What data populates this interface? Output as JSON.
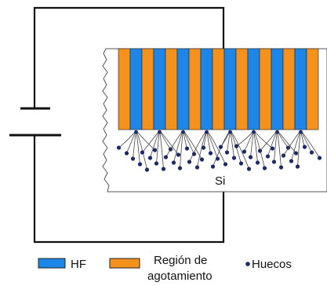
{
  "diagram": {
    "substrate_label": "Si",
    "colors": {
      "hf": "#1e86e6",
      "depletion": "#f5921e",
      "hole": "#1a2a6a",
      "wire": "#111111"
    },
    "stripe_count": 17
  },
  "legend": {
    "hf_label": "HF",
    "depletion_label_line1": "Región de",
    "depletion_label_line2": "agotamiento",
    "holes_label": "Huecos"
  }
}
